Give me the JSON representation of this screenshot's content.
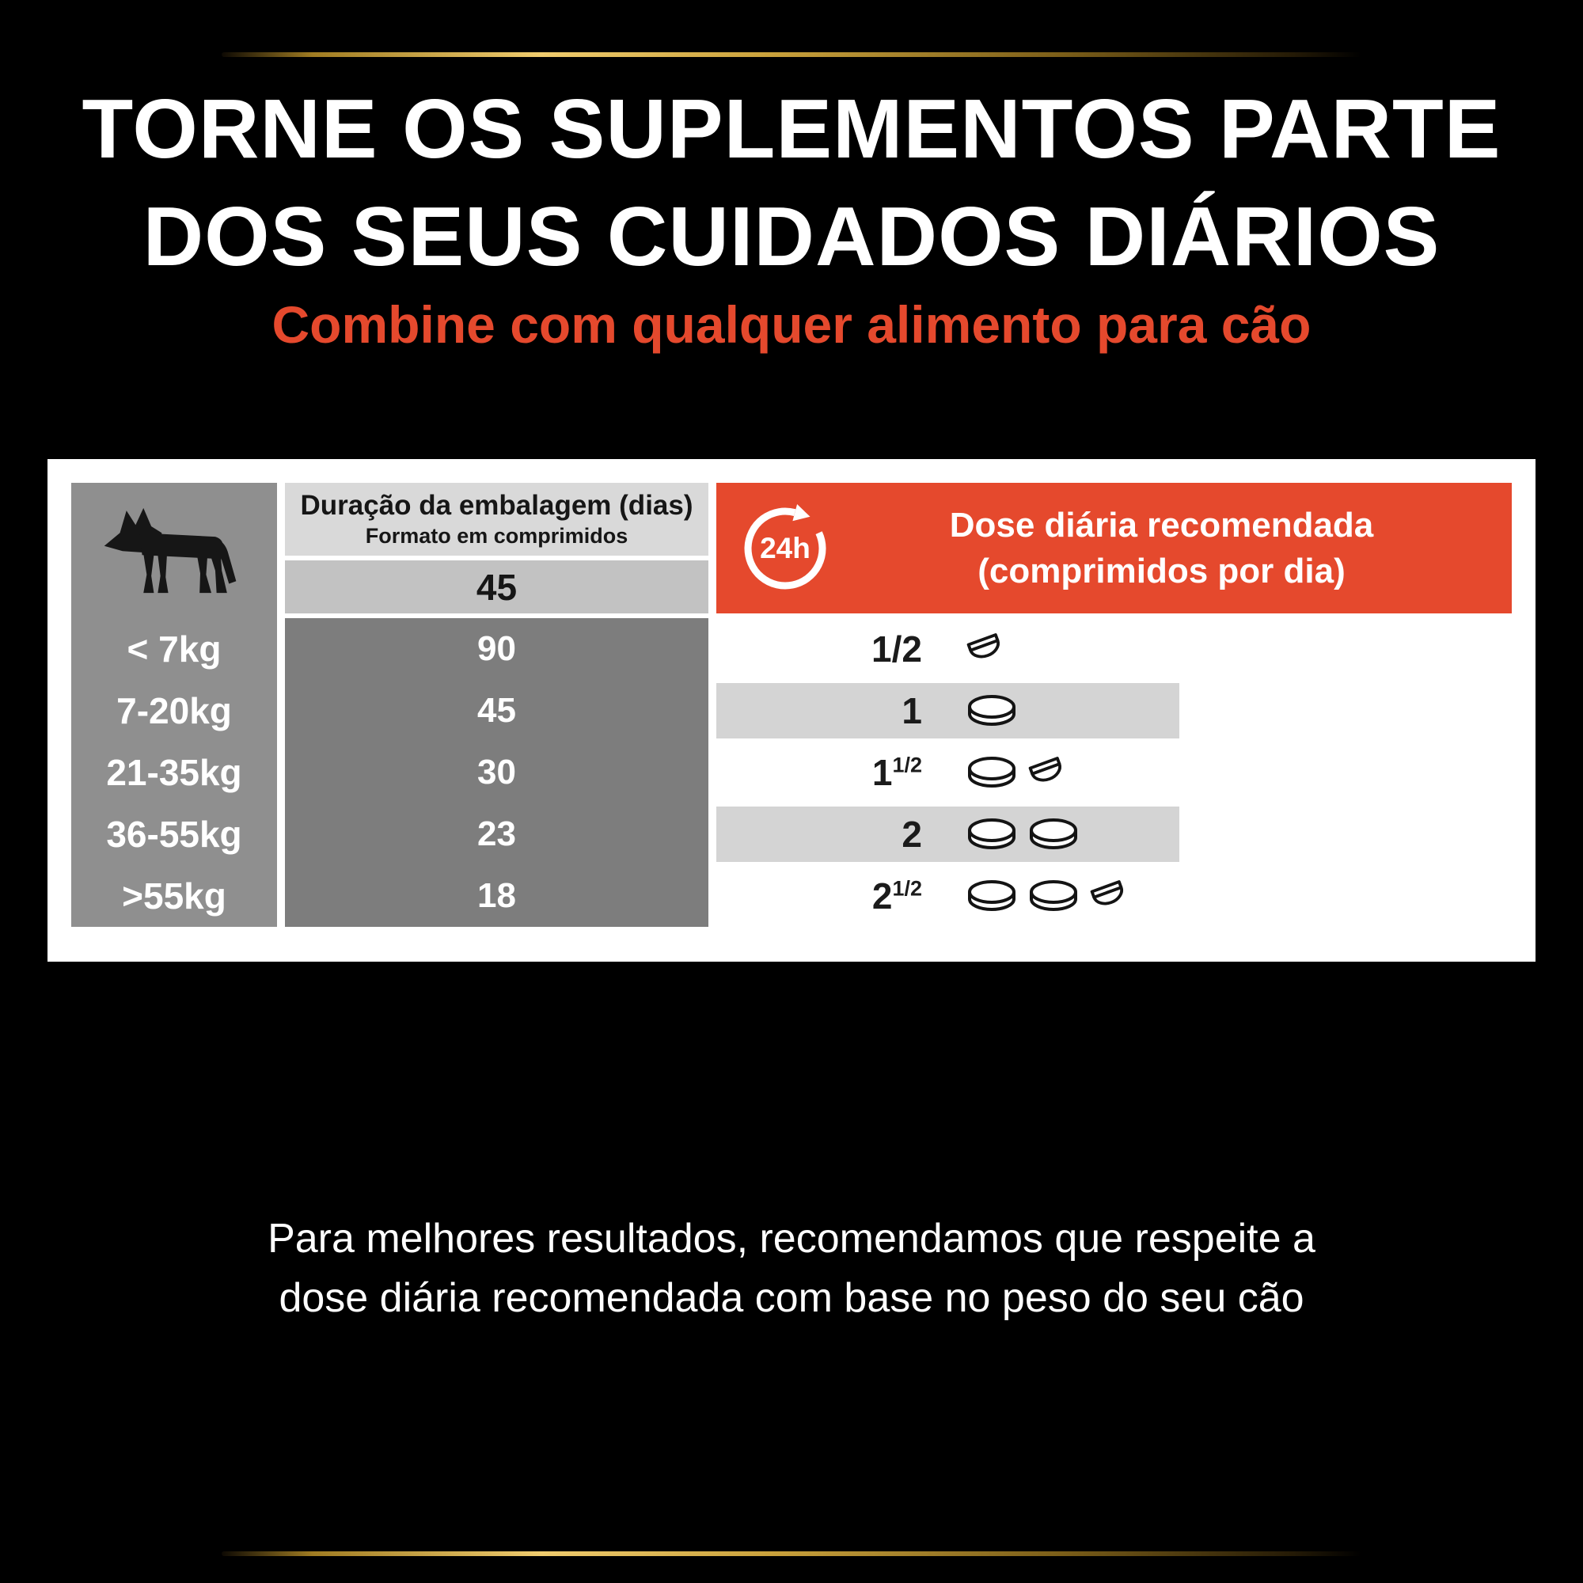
{
  "colors": {
    "accent": "#e5492d",
    "gold": "#d8ae52",
    "gray_left": "#8f8f8f",
    "gray_dark": "#7d7d7d",
    "gray_header": "#d9d9d9",
    "gray_band": "#c2c2c2",
    "gray_stripe": "#d4d4d4"
  },
  "header": {
    "title_line1": "TORNE OS SUPLEMENTOS PARTE",
    "title_line2": "DOS SEUS CUIDADOS DIÁRIOS",
    "subtitle": "Combine com qualquer alimento para cão"
  },
  "table": {
    "duration_header": "Duração da embalagem (dias)",
    "duration_subheader": "Formato em comprimidos",
    "pack_size": "45",
    "badge_24h": "24h",
    "dose_header_line1": "Dose diária recomendada",
    "dose_header_line2": "(comprimidos por dia)",
    "rows": [
      {
        "weight": "< 7kg",
        "duration": "90",
        "dose": "1/2",
        "dose_sup": "",
        "tablets": [
          "half"
        ],
        "striped": false
      },
      {
        "weight": "7-20kg",
        "duration": "45",
        "dose": "1",
        "dose_sup": "",
        "tablets": [
          "full"
        ],
        "striped": true
      },
      {
        "weight": "21-35kg",
        "duration": "30",
        "dose": "1",
        "dose_sup": "1/2",
        "tablets": [
          "full",
          "half"
        ],
        "striped": false
      },
      {
        "weight": "36-55kg",
        "duration": "23",
        "dose": "2",
        "dose_sup": "",
        "tablets": [
          "full",
          "full"
        ],
        "striped": true
      },
      {
        "weight": ">55kg",
        "duration": "18",
        "dose": "2",
        "dose_sup": "1/2",
        "tablets": [
          "full",
          "full",
          "half"
        ],
        "striped": false
      }
    ]
  },
  "footer": {
    "line1": "Para melhores resultados, recomendamos que respeite a",
    "line2": "dose diária recomendada com base no peso do seu cão"
  },
  "chart_data": {
    "type": "table",
    "title": "Torne os suplementos parte dos seus cuidados diários",
    "subtitle": "Combine com qualquer alimento para cão",
    "columns": [
      "Peso do cão",
      "Duração da embalagem (dias) - formato em comprimidos (embalagem de 45)",
      "Dose diária recomendada (comprimidos por dia)"
    ],
    "rows": [
      [
        "< 7kg",
        90,
        0.5
      ],
      [
        "7-20kg",
        45,
        1
      ],
      [
        "21-35kg",
        30,
        1.5
      ],
      [
        "36-55kg",
        23,
        2
      ],
      [
        ">55kg",
        18,
        2.5
      ]
    ]
  }
}
